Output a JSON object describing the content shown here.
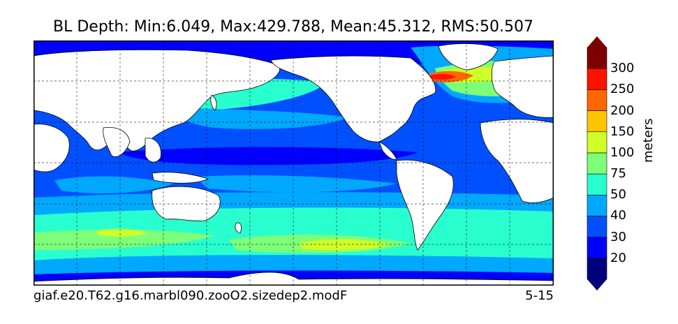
{
  "title": "BL Depth: Min:6.049, Max:429.788, Mean:45.312, RMS:50.507",
  "footer": {
    "case_name": "giaf.e20.T62.g16.marbl090.zooO2.sizedep2.modF",
    "months": "5-15"
  },
  "colorbar": {
    "units": "meters",
    "levels": [
      "20",
      "30",
      "40",
      "50",
      "75",
      "100",
      "150",
      "200",
      "250",
      "300"
    ],
    "colors": [
      "#00007f",
      "#0000ff",
      "#0050ff",
      "#00a8ff",
      "#29ffce",
      "#7dff7a",
      "#ceff29",
      "#ffc400",
      "#ff6800",
      "#ff1300",
      "#7f0000"
    ]
  },
  "map": {
    "land_color": "#ffffff",
    "grid": "dashed"
  }
}
